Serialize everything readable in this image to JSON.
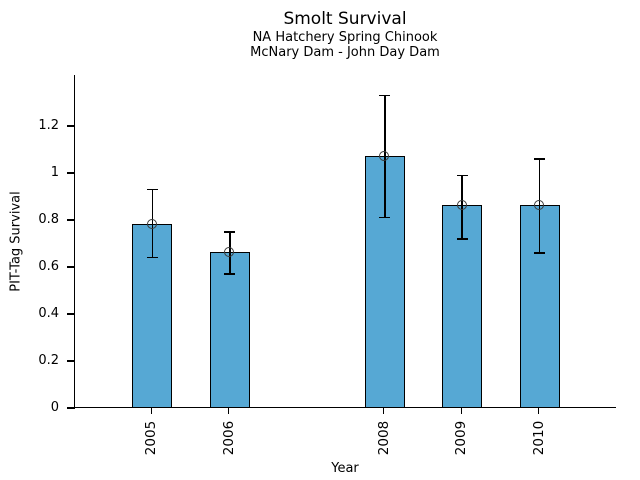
{
  "header": {
    "title": "Smolt Survival",
    "subtitle_line1": "NA Hatchery Spring Chinook",
    "subtitle_line2": "McNary Dam - John Day Dam"
  },
  "axes": {
    "x_label": "Year",
    "y_label": "PIT-Tag Survival"
  },
  "chart_data": {
    "type": "bar",
    "title": "Smolt Survival",
    "subtitle": [
      "NA Hatchery Spring Chinook",
      "McNary Dam - John Day Dam"
    ],
    "xlabel": "Year",
    "ylabel": "PIT-Tag Survival",
    "categories": [
      "2005",
      "2006",
      "2008",
      "2009",
      "2010"
    ],
    "x_positions": [
      1,
      2,
      4,
      5,
      6
    ],
    "xlim": [
      0,
      7
    ],
    "values": [
      0.78,
      0.66,
      1.07,
      0.86,
      0.86
    ],
    "error_low": [
      0.64,
      0.57,
      0.81,
      0.72,
      0.66
    ],
    "error_high": [
      0.93,
      0.75,
      1.33,
      0.99,
      1.06
    ],
    "ytick_values": [
      0,
      0.2,
      0.4,
      0.6,
      0.8,
      1,
      1.2
    ],
    "ytick_labels": [
      "0",
      "0.2",
      "0.4",
      "0.6",
      "0.8",
      "1",
      "1.2"
    ],
    "ylim": [
      0,
      1.417
    ],
    "grid": false,
    "legend": false,
    "bar_color": "#56a8d4",
    "bar_edge_color": "#000000",
    "error_bar_color": "#000000",
    "marker": "open-circle",
    "marker_color": "#3a3a3a"
  }
}
